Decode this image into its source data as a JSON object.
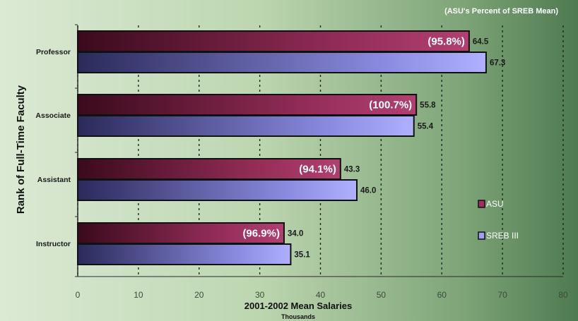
{
  "chart_data": {
    "type": "bar",
    "orientation": "horizontal",
    "title": "",
    "note": "(ASU's Percent of SREB Mean)",
    "xlabel": "2001-2002 Mean Salaries",
    "xlabel_sub": "Thousands",
    "ylabel": "Rank of Full-Time Faculty",
    "xlim": [
      0,
      80
    ],
    "xticks": [
      0,
      10,
      20,
      30,
      40,
      50,
      60,
      70,
      80
    ],
    "grid": "vertical dashed",
    "categories": [
      "Professor",
      "Associate",
      "Assistant",
      "Instructor"
    ],
    "series": [
      {
        "name": "ASU",
        "color": "#8a2a50",
        "values": [
          64.5,
          55.8,
          43.3,
          34.0
        ],
        "labels": [
          "64.5",
          "55.8",
          "43.3",
          "34.0"
        ]
      },
      {
        "name": "SREB III",
        "color": "#9090ee",
        "values": [
          67.3,
          55.4,
          46.0,
          35.1
        ],
        "labels": [
          "67.3",
          "55.4",
          "46.0",
          "35.1"
        ]
      }
    ],
    "percent_labels": [
      "(95.8%)",
      "(100.7%)",
      "(94.1%)",
      "(96.9%)"
    ],
    "legend_position": "right"
  }
}
